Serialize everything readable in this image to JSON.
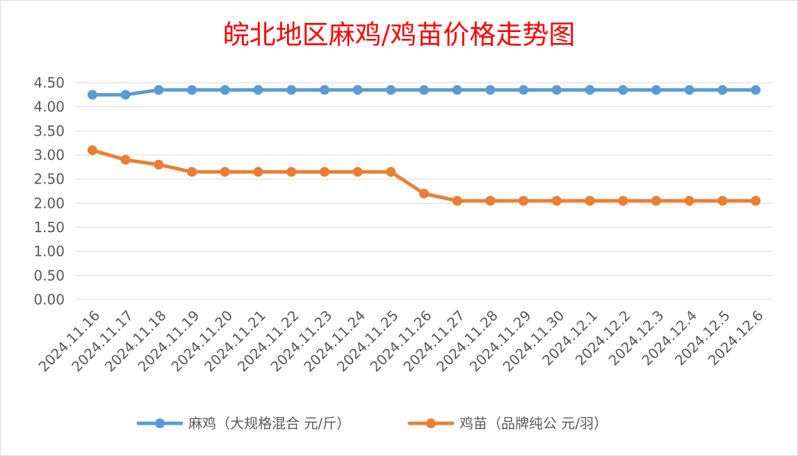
{
  "chart_data": {
    "type": "line",
    "title": "皖北地区麻鸡/鸡苗价格走势图",
    "xlabel": "",
    "ylabel": "",
    "ylim": [
      0,
      4.5
    ],
    "yticks": [
      "0.00",
      "0.50",
      "1.00",
      "1.50",
      "2.00",
      "2.50",
      "3.00",
      "3.50",
      "4.00",
      "4.50"
    ],
    "grid": true,
    "legend_position": "bottom",
    "categories": [
      "2024.11.16",
      "2024.11.17",
      "2024.11.18",
      "2024.11.19",
      "2024.11.20",
      "2024.11.21",
      "2024.11.22",
      "2024.11.23",
      "2024.11.24",
      "2024.11.25",
      "2024.11.26",
      "2024.11.27",
      "2024.11.28",
      "2024.11.29",
      "2024.11.30",
      "2024.12.1",
      "2024.12.2",
      "2024.12.3",
      "2024.12.4",
      "2024.12.5",
      "2024.12.6"
    ],
    "series": [
      {
        "name": "麻鸡（大规格混合 元/斤）",
        "color": "#5b9bd5",
        "values": [
          4.25,
          4.25,
          4.35,
          4.35,
          4.35,
          4.35,
          4.35,
          4.35,
          4.35,
          4.35,
          4.35,
          4.35,
          4.35,
          4.35,
          4.35,
          4.35,
          4.35,
          4.35,
          4.35,
          4.35,
          4.35
        ]
      },
      {
        "name": "鸡苗（品牌纯公 元/羽）",
        "color": "#ed7d31",
        "values": [
          3.1,
          2.9,
          2.8,
          2.65,
          2.65,
          2.65,
          2.65,
          2.65,
          2.65,
          2.65,
          2.2,
          2.05,
          2.05,
          2.05,
          2.05,
          2.05,
          2.05,
          2.05,
          2.05,
          2.05,
          2.05
        ]
      }
    ]
  }
}
